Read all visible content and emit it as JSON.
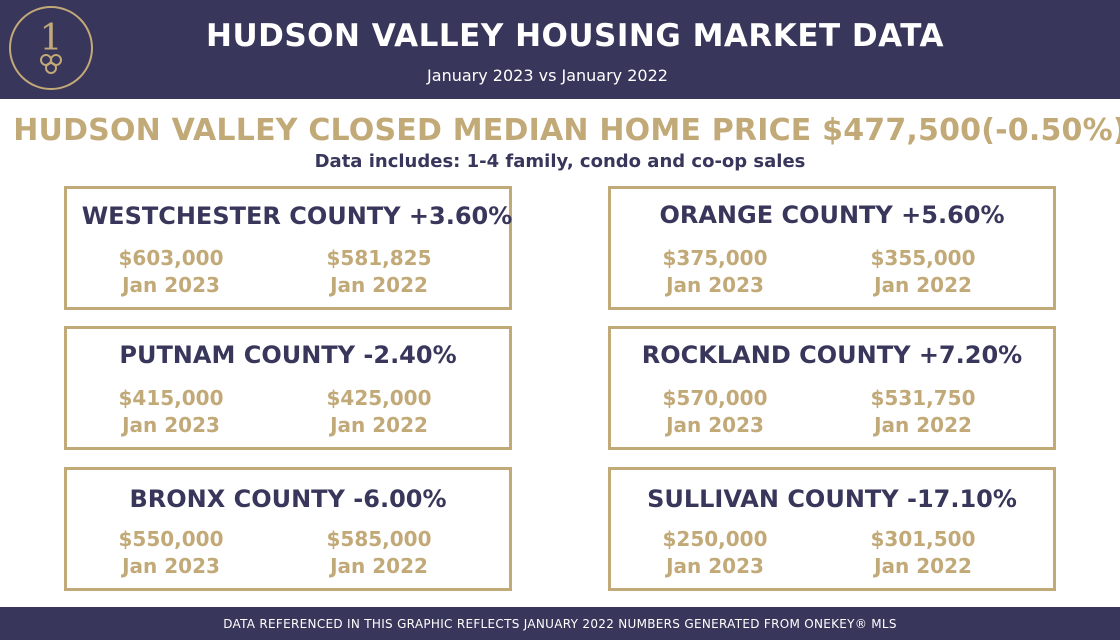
{
  "header": {
    "logo_glyph": "1",
    "title": "HUDSON VALLEY HOUSING MARKET DATA",
    "subtitle": "January 2023 vs January 2022"
  },
  "headline": "HUDSON VALLEY CLOSED MEDIAN HOME PRICE $477,500(-0.50%)",
  "includes_note": "Data includes: 1-4 family, condo and co-op sales",
  "counties": [
    {
      "title": "WESTCHESTER COUNTY +3.60%",
      "price_2023": "$603,000",
      "label_2023": "Jan 2023",
      "price_2022": "$581,825",
      "label_2022": "Jan 2022"
    },
    {
      "title": "ORANGE COUNTY +5.60%",
      "price_2023": "$375,000",
      "label_2023": "Jan 2023",
      "price_2022": "$355,000",
      "label_2022": "Jan 2022"
    },
    {
      "title": "PUTNAM COUNTY -2.40%",
      "price_2023": "$415,000",
      "label_2023": "Jan 2023",
      "price_2022": "$425,000",
      "label_2022": "Jan 2022"
    },
    {
      "title": "ROCKLAND COUNTY +7.20%",
      "price_2023": "$570,000",
      "label_2023": "Jan 2023",
      "price_2022": "$531,750",
      "label_2022": "Jan 2022"
    },
    {
      "title": "BRONX COUNTY -6.00%",
      "price_2023": "$550,000",
      "label_2023": "Jan 2023",
      "price_2022": "$585,000",
      "label_2022": "Jan 2022"
    },
    {
      "title": "SULLIVAN COUNTY -17.10%",
      "price_2023": "$250,000",
      "label_2023": "Jan 2023",
      "price_2022": "$301,500",
      "label_2022": "Jan 2022"
    }
  ],
  "footer": "DATA REFERENCED IN THIS GRAPHIC REFLECTS JANUARY 2022 NUMBERS GENERATED FROM ONEKEY® MLS",
  "colors": {
    "navy": "#38365a",
    "gold": "#c2a978",
    "white": "#ffffff"
  }
}
